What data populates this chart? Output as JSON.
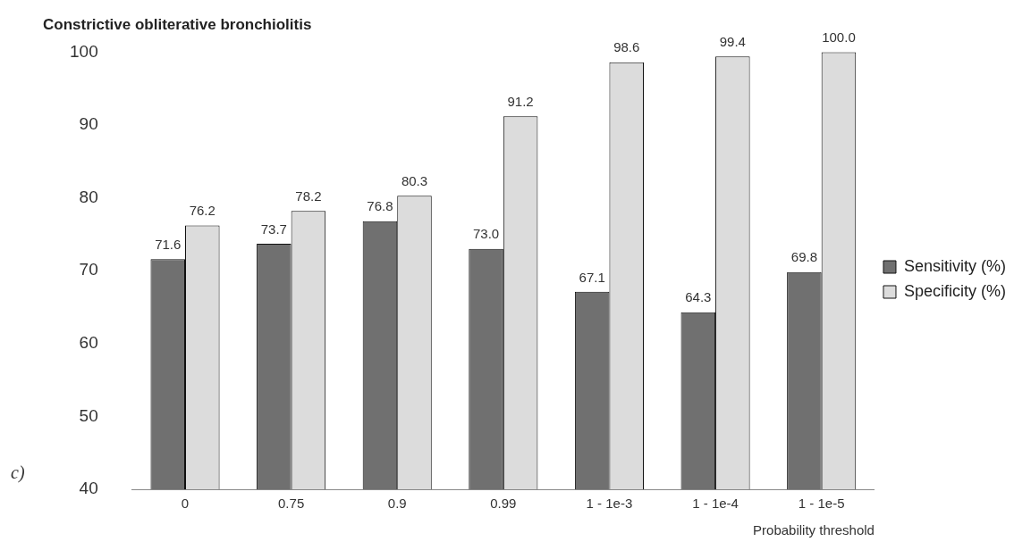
{
  "chart_data": {
    "type": "bar",
    "title": "Constrictive obliterative bronchiolitis",
    "xlabel": "Probability threshold",
    "annotations": [
      "c)"
    ],
    "categories": [
      "0",
      "0.75",
      "0.9",
      "0.99",
      "1 - 1e-3",
      "1 - 1e-4",
      "1 - 1e-5"
    ],
    "series": [
      {
        "name": "Sensitivity (%)",
        "color": "#707070",
        "values": [
          71.6,
          73.7,
          76.8,
          73.0,
          67.1,
          64.3,
          69.8
        ],
        "value_labels": [
          "71.6",
          "73.7",
          "76.8",
          "73.0",
          "67.1",
          "64.3",
          "69.8"
        ]
      },
      {
        "name": "Specificity (%)",
        "color": "#dcdcdc",
        "values": [
          76.2,
          78.2,
          80.3,
          91.2,
          98.6,
          99.4,
          100.0
        ],
        "value_labels": [
          "76.2",
          "78.2",
          "80.3",
          "91.2",
          "98.6",
          "99.4",
          "100.0"
        ]
      }
    ],
    "ylim": [
      40,
      100
    ],
    "yticks": [
      40,
      50,
      60,
      70,
      80,
      90,
      100
    ],
    "grid": false,
    "legend": "right"
  }
}
